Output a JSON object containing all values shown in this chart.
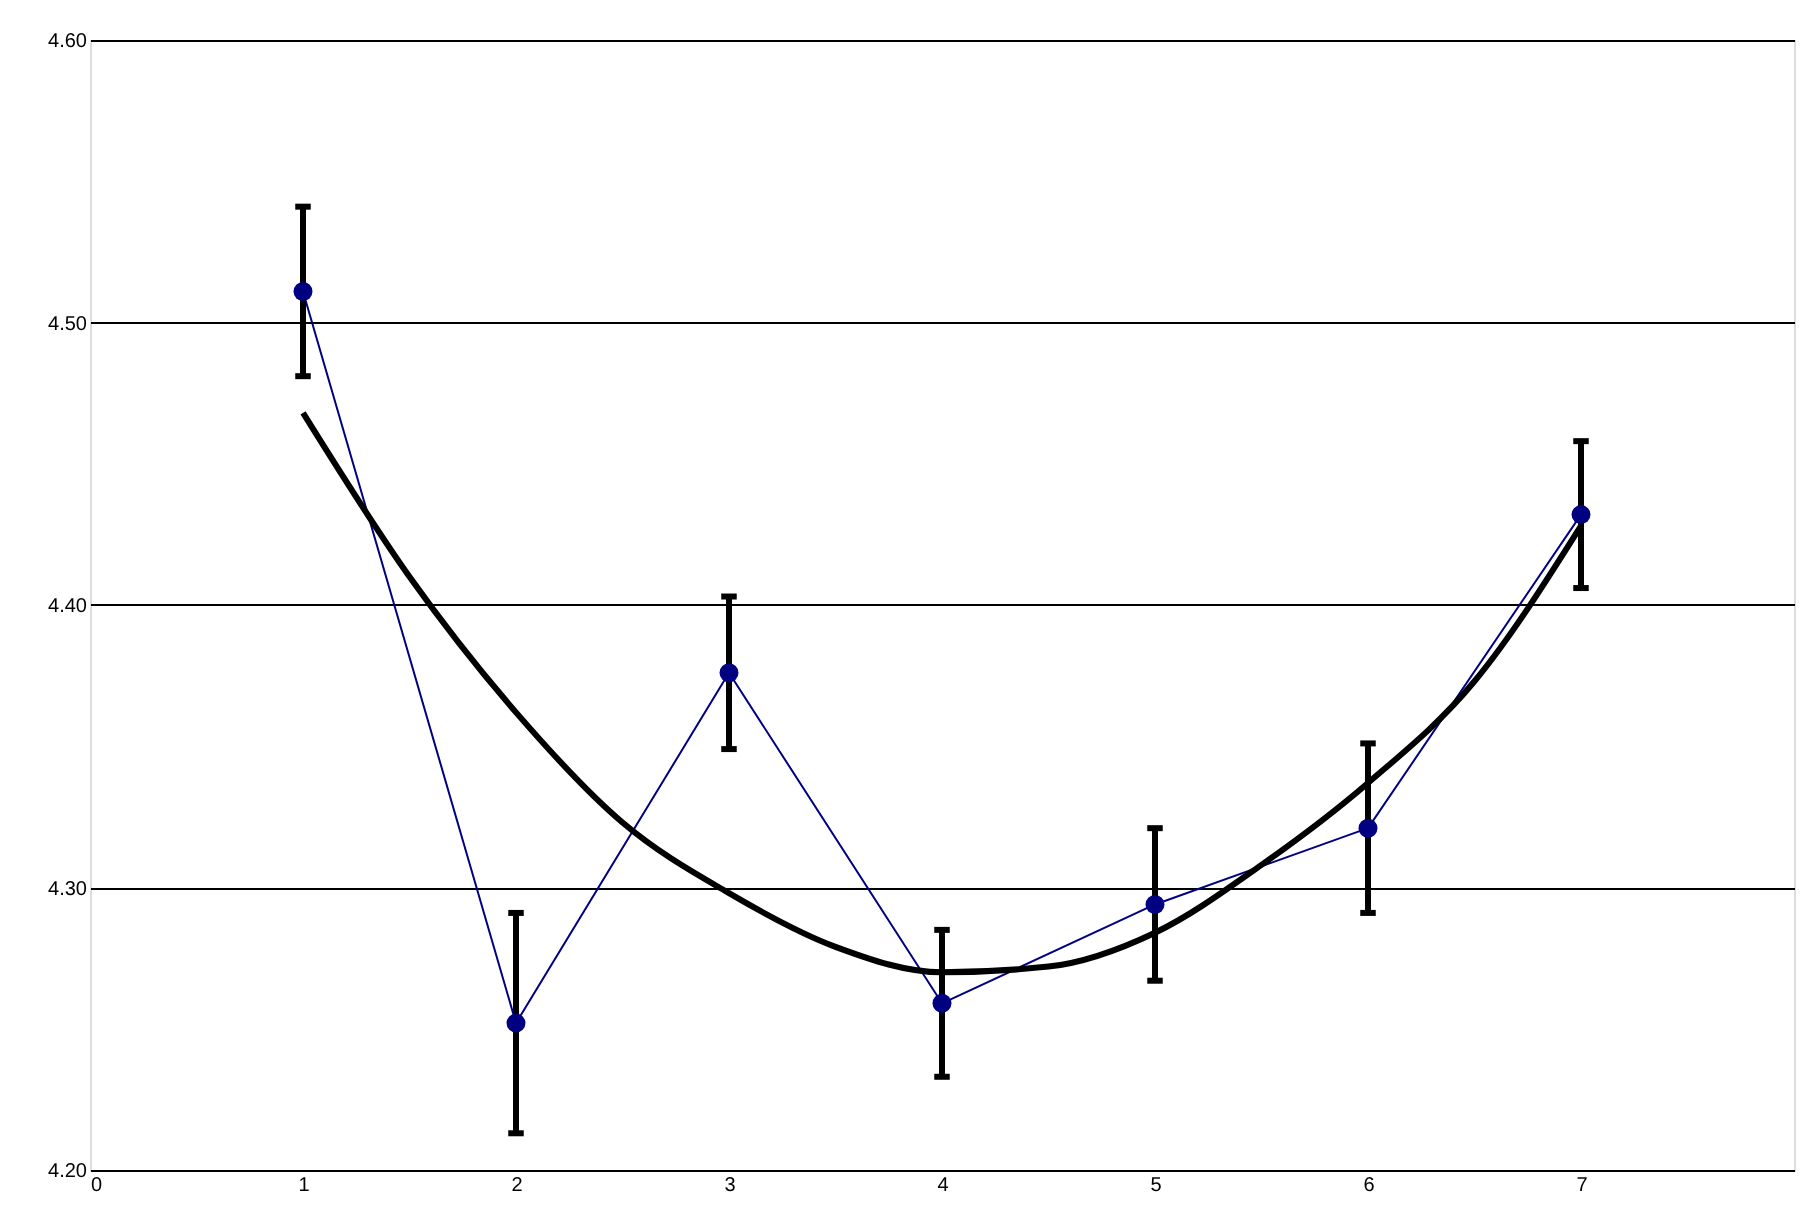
{
  "chart_data": {
    "type": "line",
    "x": [
      1,
      2,
      3,
      4,
      5,
      6,
      7
    ],
    "series": [
      {
        "color": "#000080",
        "marker": "circle",
        "values": [
          4.511,
          4.252,
          4.376,
          4.259,
          4.294,
          4.321,
          4.432
        ],
        "errors": [
          0.03,
          0.039,
          0.027,
          0.026,
          0.027,
          0.03,
          0.026
        ]
      },
      {
        "color": "#000000",
        "marker": "none",
        "line_style": "solid",
        "x": [
          1,
          1.5,
          2,
          2.5,
          3,
          3.5,
          4,
          4.5,
          5,
          5.5,
          6,
          6.5,
          7
        ],
        "values": [
          4.468,
          4.41,
          4.362,
          4.323,
          4.298,
          4.279,
          4.27,
          4.272,
          4.284,
          4.308,
          4.337,
          4.373,
          4.428
        ]
      }
    ],
    "xlim": [
      0,
      8
    ],
    "xticks": [
      0,
      1,
      2,
      3,
      4,
      5,
      6,
      7
    ],
    "ylim": [
      4.2,
      4.6
    ],
    "yticks": [
      {
        "value": 4.2,
        "label": "4.20"
      },
      {
        "value": 4.3,
        "label": "4.30"
      },
      {
        "value": 4.4,
        "label": "4.40"
      },
      {
        "value": 4.5,
        "label": "4.50"
      },
      {
        "value": 4.6,
        "label": "4.60"
      }
    ],
    "grid": "y",
    "line_style": "solid"
  }
}
